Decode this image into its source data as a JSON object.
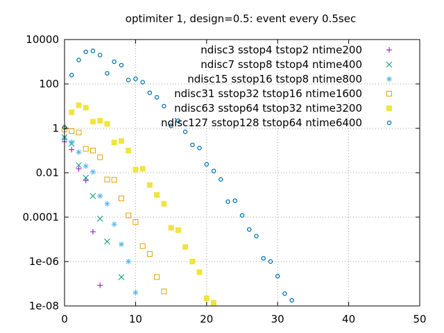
{
  "chart_data": {
    "type": "scatter",
    "title": "optimiter 1, design=0.5: event every 0.5sec",
    "xlabel": "",
    "ylabel": "",
    "xlim": [
      0,
      50
    ],
    "ylim": [
      1e-08,
      10000
    ],
    "yscale": "log",
    "grid": true,
    "legend_position": "top-right",
    "x_ticks": [
      {
        "v": 0,
        "label": "0"
      },
      {
        "v": 10,
        "label": "10"
      },
      {
        "v": 20,
        "label": "20"
      },
      {
        "v": 30,
        "label": "30"
      },
      {
        "v": 40,
        "label": "40"
      },
      {
        "v": 50,
        "label": "50"
      }
    ],
    "y_ticks": [
      {
        "v": 1e-08,
        "label": "1e-08"
      },
      {
        "v": 1e-06,
        "label": "1e-06"
      },
      {
        "v": 0.0001,
        "label": "0.0001"
      },
      {
        "v": 0.01,
        "label": "0.01"
      },
      {
        "v": 1,
        "label": "1"
      },
      {
        "v": 100,
        "label": "100"
      },
      {
        "v": 10000,
        "label": "10000"
      }
    ],
    "series": [
      {
        "name": "ndisc3   sstop4   tstop2  ntime200",
        "marker": "plus",
        "color": "#9400d3",
        "points": [
          [
            0,
            0.25
          ],
          [
            1,
            0.11
          ],
          [
            2,
            0.015
          ],
          [
            3,
            0.0045
          ],
          [
            4,
            2.2e-05
          ],
          [
            5,
            8.5e-08
          ]
        ]
      },
      {
        "name": "ndisc7   sstop8   tstop4  ntime400",
        "marker": "cross",
        "color": "#009e73",
        "points": [
          [
            0,
            0.4
          ],
          [
            1,
            0.2
          ],
          [
            2,
            0.022
          ],
          [
            3,
            0.006
          ],
          [
            4,
            0.0009
          ],
          [
            5,
            8.5e-05
          ],
          [
            6,
            8e-06
          ],
          [
            8,
            2e-07
          ]
        ]
      },
      {
        "name": "ndisc15  sstop16  tstop8  ntime800",
        "marker": "asterisk",
        "color": "#56b4e9",
        "points": [
          [
            0,
            0.35
          ],
          [
            1,
            0.24
          ],
          [
            2,
            0.085
          ],
          [
            3,
            0.02
          ],
          [
            4,
            0.011
          ],
          [
            5,
            0.0009
          ],
          [
            6,
            0.0004
          ],
          [
            7,
            4.8e-05
          ],
          [
            8,
            6e-06
          ],
          [
            9,
            1e-06
          ],
          [
            10,
            4e-08
          ]
        ]
      },
      {
        "name": "ndisc31  sstop32  tstop16 ntime1600",
        "marker": "box",
        "color": "#e69f00",
        "points": [
          [
            0,
            0.9
          ],
          [
            1,
            0.75
          ],
          [
            2,
            0.65
          ],
          [
            3,
            0.12
          ],
          [
            4,
            0.1
          ],
          [
            5,
            0.05
          ],
          [
            6,
            0.005
          ],
          [
            7,
            0.0048
          ],
          [
            8,
            0.0007
          ],
          [
            9,
            0.00012
          ],
          [
            10,
            6e-05
          ],
          [
            11,
            5e-06
          ],
          [
            12,
            2.2e-06
          ],
          [
            13,
            2e-07
          ],
          [
            14,
            4.5e-08
          ]
        ]
      },
      {
        "name": "ndisc63  sstop64  tstop32 ntime3200",
        "marker": "boxfilled",
        "color": "#f0e442",
        "points": [
          [
            1,
            5.3
          ],
          [
            2,
            11
          ],
          [
            3,
            8.5
          ],
          [
            4,
            2
          ],
          [
            5,
            2.2
          ],
          [
            6,
            1.6
          ],
          [
            7,
            0.23
          ],
          [
            8,
            0.27
          ],
          [
            9,
            0.1
          ],
          [
            10,
            0.014
          ],
          [
            11,
            0.015
          ],
          [
            12,
            0.0028
          ],
          [
            13,
            0.001
          ],
          [
            14,
            0.0004
          ],
          [
            15,
            3.3e-05
          ],
          [
            16,
            2.6e-05
          ],
          [
            17,
            4.5e-06
          ],
          [
            18,
            1e-06
          ],
          [
            19,
            3.3e-07
          ],
          [
            20,
            2.2e-08
          ],
          [
            21,
            1.4e-08
          ]
        ]
      },
      {
        "name": "ndisc127 sstop128 tstop64 ntime6400",
        "marker": "circle",
        "color": "#0072b2",
        "points": [
          [
            0,
            1.1
          ],
          [
            1,
            250
          ],
          [
            2,
            1200
          ],
          [
            3,
            2800
          ],
          [
            4,
            3100
          ],
          [
            5,
            2000
          ],
          [
            6,
            300
          ],
          [
            7,
            1000
          ],
          [
            8,
            700
          ],
          [
            9,
            150
          ],
          [
            10,
            170
          ],
          [
            11,
            120
          ],
          [
            12,
            40
          ],
          [
            13,
            25
          ],
          [
            14,
            10
          ],
          [
            15,
            1.3
          ],
          [
            16,
            2.2
          ],
          [
            17,
            0.7
          ],
          [
            18,
            0.18
          ],
          [
            19,
            0.13
          ],
          [
            20,
            0.024
          ],
          [
            21,
            0.012
          ],
          [
            22,
            0.005
          ],
          [
            23,
            0.0005
          ],
          [
            24,
            0.00055
          ],
          [
            25,
            0.00012
          ],
          [
            26,
            2.8e-05
          ],
          [
            27,
            1.4e-05
          ],
          [
            28,
            1.4e-06
          ],
          [
            29,
            1e-06
          ],
          [
            30,
            2.2e-07
          ],
          [
            31,
            3.6e-08
          ],
          [
            32,
            1.8e-08
          ]
        ]
      }
    ]
  }
}
